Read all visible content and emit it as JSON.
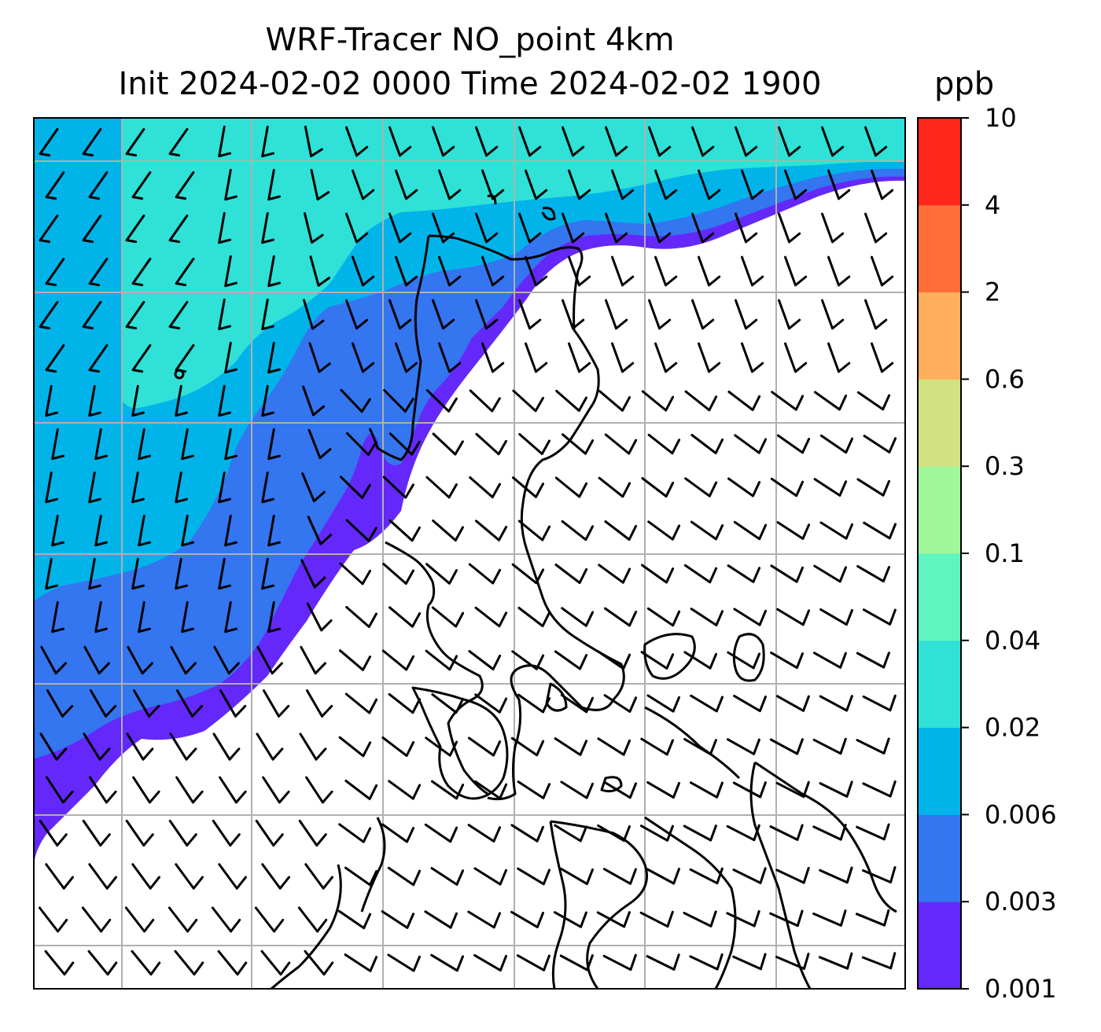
{
  "title": {
    "line1": "WRF-Tracer NO_point 4km",
    "line2": "Init 2024-02-02 0000 Time 2024-02-02 1900",
    "unit": "ppb"
  },
  "colorbar": {
    "levels": [
      "0.001",
      "0.003",
      "0.006",
      "0.02",
      "0.04",
      "0.1",
      "0.3",
      "0.6",
      "2",
      "4",
      "10"
    ],
    "colors": [
      "#6428fa",
      "#3475f0",
      "#00b4e9",
      "#2fe1d7",
      "#5ef5c0",
      "#a2f79b",
      "#d2e282",
      "#ffaf5d",
      "#ff6e38",
      "#ff261a"
    ]
  },
  "map": {
    "background": "#ffffff",
    "gridline_color": "#b0b0b0",
    "coastline_color": "#000000",
    "wind_barb_color": "#000000"
  }
}
